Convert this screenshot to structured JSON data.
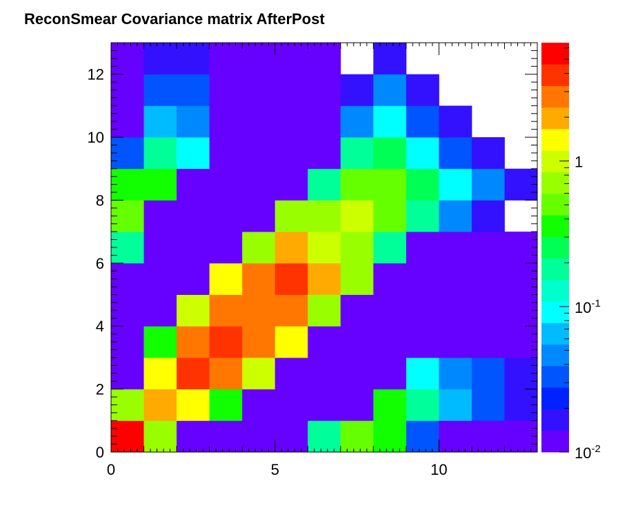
{
  "chart_data": {
    "type": "heatmap",
    "title": "ReconSmear Covariance matrix AfterPost",
    "xlabel": "",
    "ylabel": "",
    "xlim": [
      0,
      13
    ],
    "ylim": [
      0,
      13
    ],
    "x_ticks": [
      "0",
      "5",
      "10"
    ],
    "x_tick_values": [
      0,
      5,
      10
    ],
    "y_ticks": [
      "0",
      "2",
      "4",
      "6",
      "8",
      "10",
      "12"
    ],
    "y_tick_values": [
      0,
      2,
      4,
      6,
      8,
      10,
      12
    ],
    "colorbar": {
      "scale": "log",
      "range": [
        0.01,
        6.5
      ],
      "ticks": [
        {
          "value": 0.01,
          "base": "10",
          "exp": "-2"
        },
        {
          "value": 0.1,
          "base": "10",
          "exp": "-1"
        },
        {
          "value": 1,
          "base": "1",
          "exp": ""
        }
      ]
    },
    "palette": [
      "#6600ff",
      "#3311ff",
      "#0022ff",
      "#0055ff",
      "#0088ff",
      "#00bbff",
      "#00ffff",
      "#00ffcc",
      "#00ff99",
      "#00ff55",
      "#11ff00",
      "#66ff00",
      "#99ff00",
      "#ccff00",
      "#ffff00",
      "#ffaa00",
      "#ff7700",
      "#ff3300",
      "#ff0000"
    ],
    "grid": false,
    "rows": [
      [
        18,
        12,
        0,
        0,
        0,
        0,
        8,
        11,
        10,
        3,
        0,
        0,
        0
      ],
      [
        12,
        15,
        14,
        10,
        0,
        0,
        0,
        0,
        10,
        8,
        5,
        3,
        1
      ],
      [
        0,
        14,
        17,
        16,
        13,
        0,
        0,
        0,
        0,
        6,
        4,
        3,
        1
      ],
      [
        0,
        10,
        16,
        17,
        16,
        14,
        0,
        0,
        0,
        0,
        0,
        0,
        0
      ],
      [
        0,
        0,
        13,
        16,
        16,
        16,
        12,
        0,
        0,
        0,
        0,
        0,
        0
      ],
      [
        0,
        0,
        0,
        14,
        16,
        17,
        15,
        12,
        0,
        0,
        0,
        0,
        0
      ],
      [
        8,
        0,
        0,
        0,
        12,
        15,
        13,
        12,
        8,
        0,
        0,
        0,
        0
      ],
      [
        11,
        0,
        0,
        0,
        0,
        12,
        12,
        13,
        11,
        8,
        4,
        1,
        null
      ],
      [
        10,
        10,
        0,
        0,
        0,
        0,
        8,
        11,
        11,
        9,
        6,
        4,
        1
      ],
      [
        3,
        8,
        6,
        0,
        0,
        0,
        0,
        8,
        9,
        6,
        3,
        1,
        null
      ],
      [
        0,
        5,
        4,
        0,
        0,
        0,
        0,
        4,
        6,
        3,
        1,
        null,
        null
      ],
      [
        0,
        3,
        3,
        0,
        0,
        0,
        0,
        1,
        4,
        1,
        null,
        null,
        null
      ],
      [
        0,
        1,
        1,
        0,
        0,
        0,
        0,
        null,
        1,
        null,
        null,
        null,
        null
      ]
    ]
  }
}
